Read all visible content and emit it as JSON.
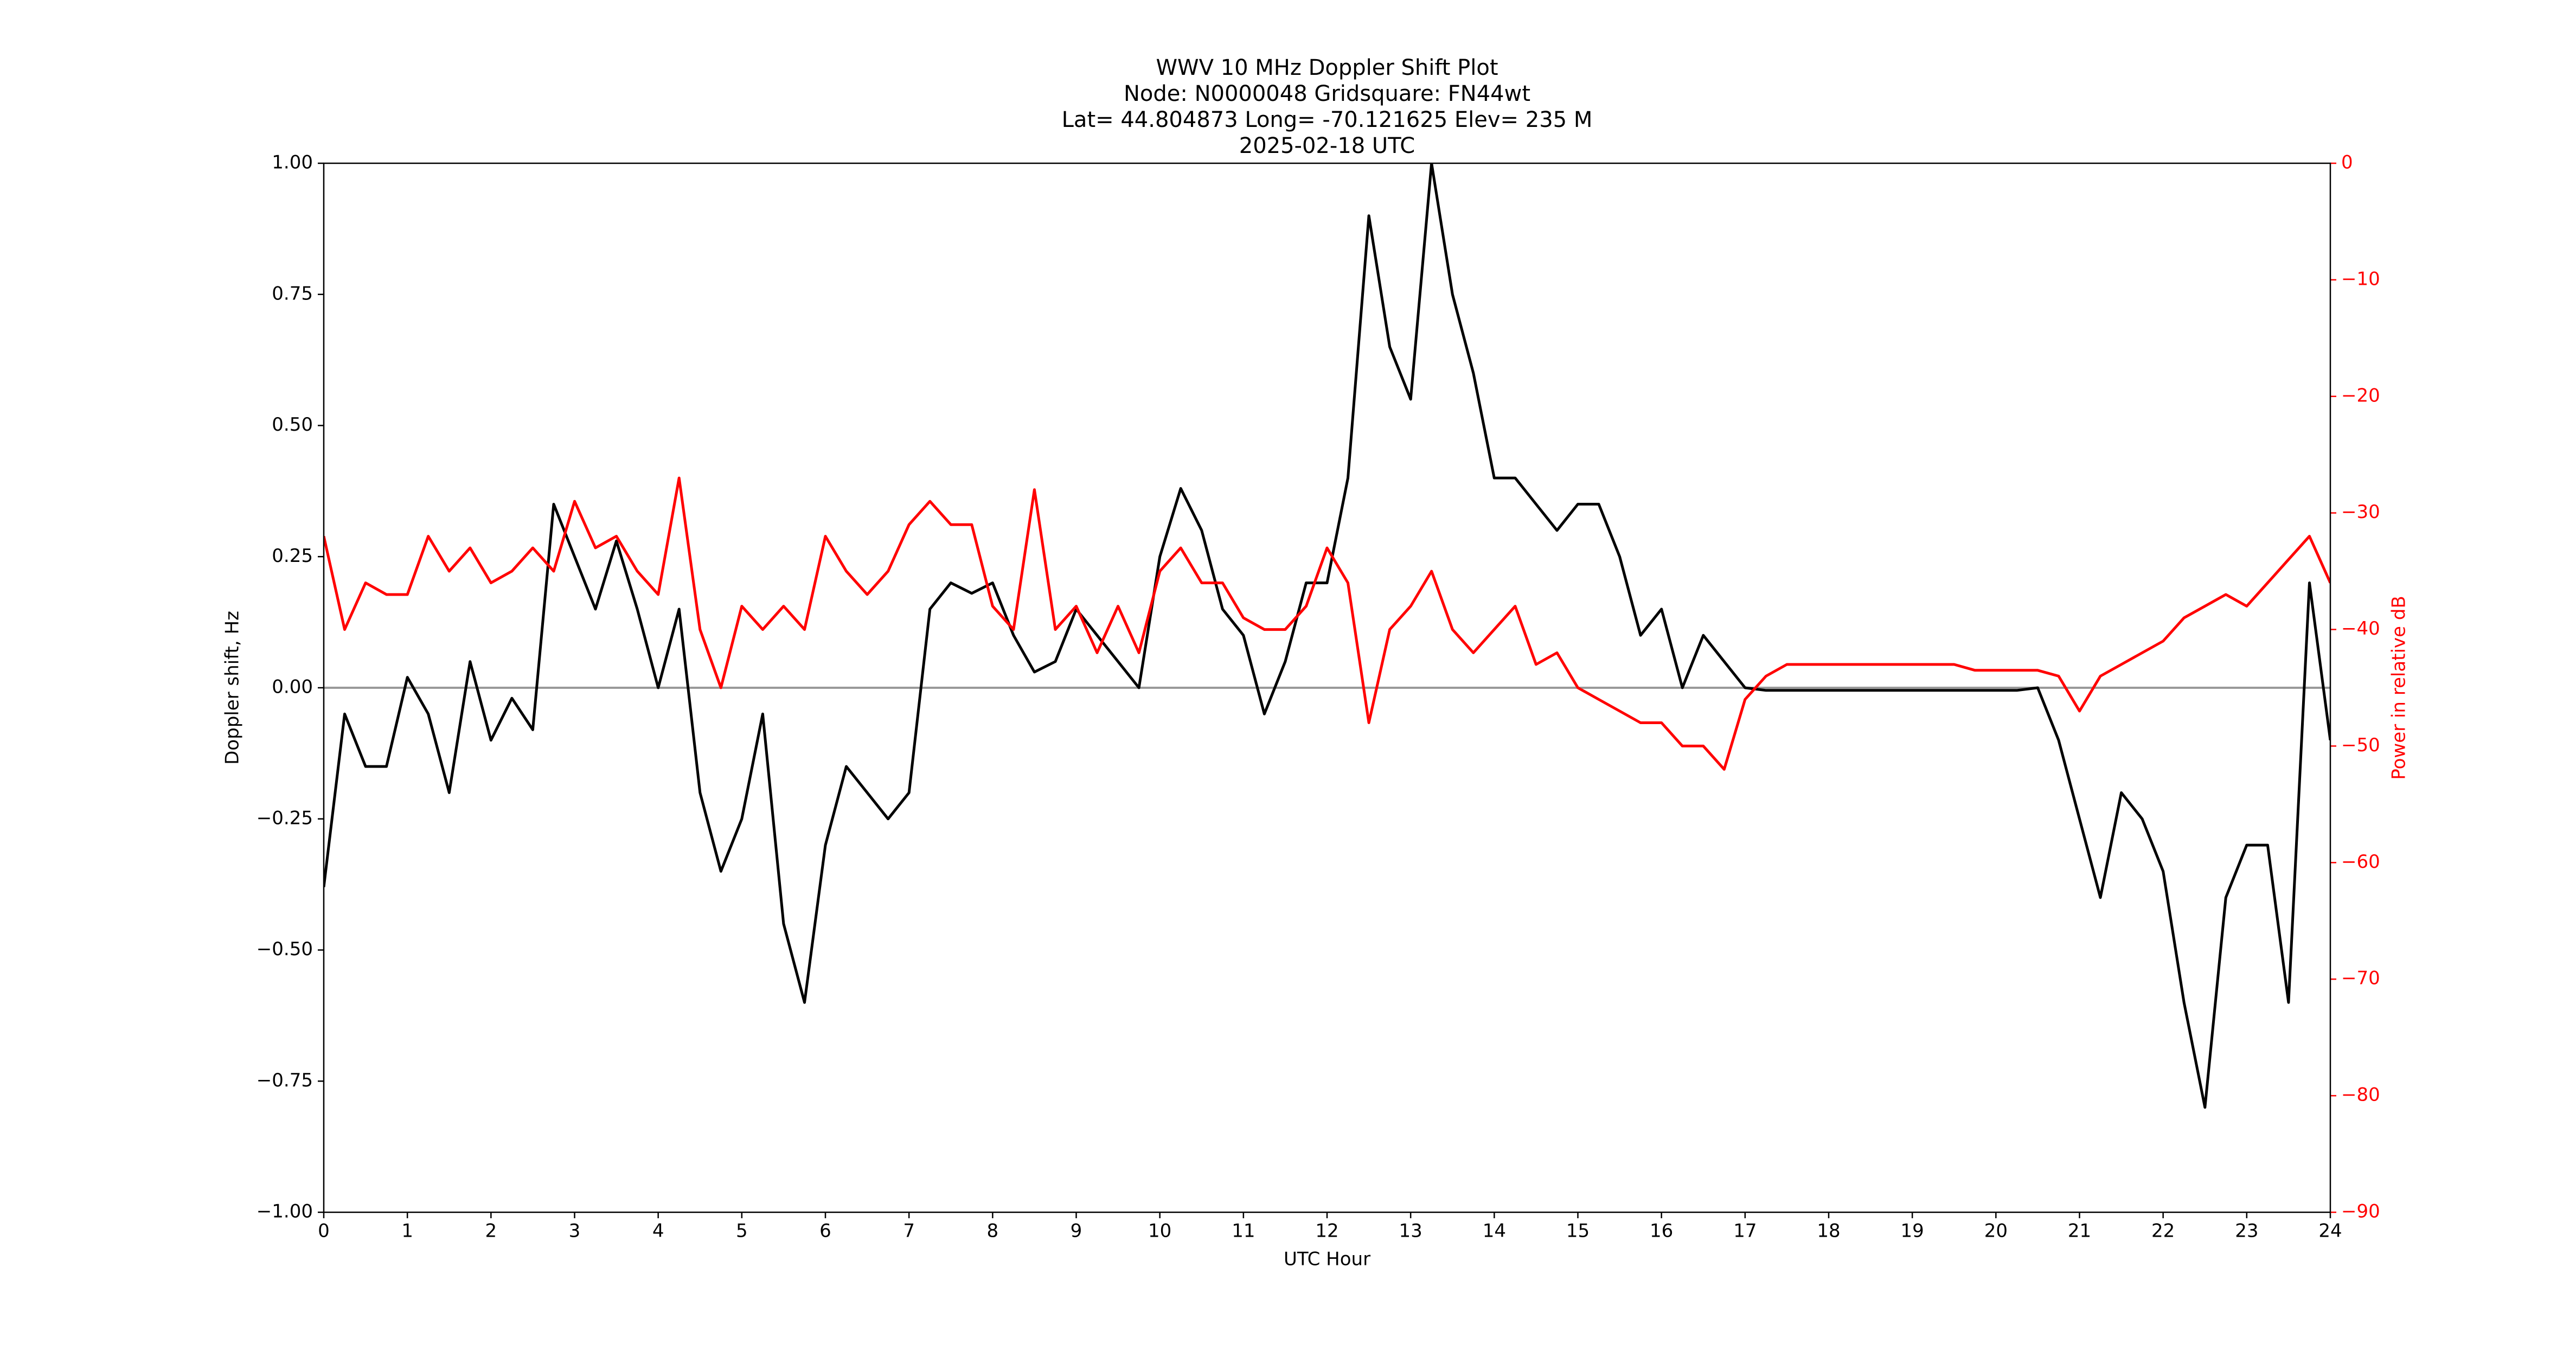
{
  "chart_data": {
    "type": "line",
    "title_lines": [
      "WWV 10 MHz Doppler Shift Plot",
      "Node:  N0000048     Gridsquare:  FN44wt",
      "Lat= 44.804873    Long= -70.121625    Elev= 235 M",
      "2025-02-18  UTC"
    ],
    "xlabel": "UTC Hour",
    "ylabel": "Doppler shift, Hz",
    "y2label": "Power in relative dB",
    "x": [
      0,
      0.25,
      0.5,
      0.75,
      1,
      1.25,
      1.5,
      1.75,
      2,
      2.25,
      2.5,
      2.75,
      3,
      3.25,
      3.5,
      3.75,
      4,
      4.25,
      4.5,
      4.75,
      5,
      5.25,
      5.5,
      5.75,
      6,
      6.25,
      6.5,
      6.75,
      7,
      7.25,
      7.5,
      7.75,
      8,
      8.25,
      8.5,
      8.75,
      9,
      9.25,
      9.5,
      9.75,
      10,
      10.25,
      10.5,
      10.75,
      11,
      11.25,
      11.5,
      11.75,
      12,
      12.25,
      12.5,
      12.75,
      13,
      13.25,
      13.5,
      13.75,
      14,
      14.25,
      14.5,
      14.75,
      15,
      15.25,
      15.5,
      15.75,
      16,
      16.25,
      16.5,
      16.75,
      17,
      17.25,
      17.5,
      17.75,
      18,
      18.25,
      18.5,
      18.75,
      19,
      19.25,
      19.5,
      19.75,
      20,
      20.25,
      20.5,
      20.75,
      21,
      21.25,
      21.5,
      21.75,
      22,
      22.25,
      22.5,
      22.75,
      23,
      23.25,
      23.5,
      23.75,
      24
    ],
    "series": [
      {
        "name": "Doppler shift",
        "color": "#000000",
        "axis": "y",
        "values": [
          -0.38,
          -0.05,
          -0.15,
          -0.15,
          0.02,
          -0.05,
          -0.2,
          0.05,
          -0.1,
          -0.02,
          -0.08,
          0.35,
          0.25,
          0.15,
          0.28,
          0.15,
          0.0,
          0.15,
          -0.2,
          -0.35,
          -0.25,
          -0.05,
          -0.45,
          -0.6,
          -0.3,
          -0.15,
          -0.2,
          -0.25,
          -0.2,
          0.15,
          0.2,
          0.18,
          0.2,
          0.1,
          0.03,
          0.05,
          0.15,
          0.1,
          0.05,
          0.0,
          0.25,
          0.38,
          0.3,
          0.15,
          0.1,
          -0.05,
          0.05,
          0.2,
          0.2,
          0.4,
          0.9,
          0.65,
          0.55,
          1.0,
          0.75,
          0.6,
          0.4,
          0.4,
          0.35,
          0.3,
          0.35,
          0.35,
          0.25,
          0.1,
          0.15,
          0.0,
          0.1,
          0.05,
          0.0,
          -0.005,
          -0.005,
          -0.005,
          -0.005,
          -0.005,
          -0.005,
          -0.005,
          -0.005,
          -0.005,
          -0.005,
          -0.005,
          -0.005,
          -0.005,
          0.0,
          -0.1,
          -0.25,
          -0.4,
          -0.2,
          -0.25,
          -0.35,
          -0.6,
          -0.8,
          -0.4,
          -0.3,
          -0.3,
          -0.6,
          0.2,
          -0.1
        ]
      },
      {
        "name": "Power",
        "color": "#ff0000",
        "axis": "y2",
        "values": [
          -32,
          -40,
          -36,
          -37,
          -37,
          -32,
          -35,
          -33,
          -36,
          -35,
          -33,
          -35,
          -29,
          -33,
          -32,
          -35,
          -37,
          -27,
          -40,
          -45,
          -38,
          -40,
          -38,
          -40,
          -32,
          -35,
          -37,
          -35,
          -31,
          -29,
          -31,
          -31,
          -38,
          -40,
          -28,
          -40,
          -38,
          -42,
          -38,
          -42,
          -35,
          -33,
          -36,
          -36,
          -39,
          -40,
          -40,
          -38,
          -33,
          -36,
          -48,
          -40,
          -38,
          -35,
          -40,
          -42,
          -40,
          -38,
          -43,
          -42,
          -45,
          -46,
          -47,
          -48,
          -48,
          -50,
          -50,
          -52,
          -46,
          -44,
          -43,
          -43,
          -43,
          -43,
          -43,
          -43,
          -43,
          -43,
          -43,
          -43.5,
          -43.5,
          -43.5,
          -43.5,
          -44,
          -47,
          -44,
          -43,
          -42,
          -41,
          -39,
          -38,
          -37,
          -38,
          -36,
          -34,
          -32,
          -36
        ]
      }
    ],
    "xlim": [
      0,
      24
    ],
    "xticks": [
      0,
      1,
      2,
      3,
      4,
      5,
      6,
      7,
      8,
      9,
      10,
      11,
      12,
      13,
      14,
      15,
      16,
      17,
      18,
      19,
      20,
      21,
      22,
      23,
      24
    ],
    "ylim": [
      -1,
      1
    ],
    "yticks": [
      {
        "value": -1,
        "label": "−1.00"
      },
      {
        "value": -0.75,
        "label": "−0.75"
      },
      {
        "value": -0.5,
        "label": "−0.50"
      },
      {
        "value": -0.25,
        "label": "−0.25"
      },
      {
        "value": 0,
        "label": "0.00"
      },
      {
        "value": 0.25,
        "label": "0.25"
      },
      {
        "value": 0.5,
        "label": "0.50"
      },
      {
        "value": 0.75,
        "label": "0.75"
      },
      {
        "value": 1,
        "label": "1.00"
      }
    ],
    "y2lim": [
      -90,
      0
    ],
    "y2ticks": [
      {
        "value": -90,
        "label": "−90"
      },
      {
        "value": -80,
        "label": "−80"
      },
      {
        "value": -70,
        "label": "−70"
      },
      {
        "value": -60,
        "label": "−60"
      },
      {
        "value": -50,
        "label": "−50"
      },
      {
        "value": -40,
        "label": "−40"
      },
      {
        "value": -30,
        "label": "−30"
      },
      {
        "value": -20,
        "label": "−20"
      },
      {
        "value": -10,
        "label": "−10"
      },
      0
    ],
    "y2color": "#ff0000",
    "hline": 0,
    "hline_color": "#999999"
  }
}
